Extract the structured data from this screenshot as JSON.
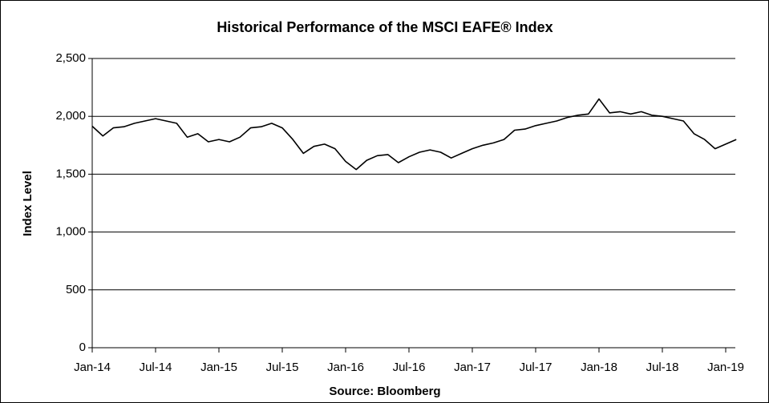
{
  "chart_data": {
    "type": "line",
    "title": "Historical Performance of the MSCI EAFE® Index",
    "ylabel": "Index Level",
    "source": "Source: Bloomberg",
    "x": [
      "Jan-14",
      "Feb-14",
      "Mar-14",
      "Apr-14",
      "May-14",
      "Jun-14",
      "Jul-14",
      "Aug-14",
      "Sep-14",
      "Oct-14",
      "Nov-14",
      "Dec-14",
      "Jan-15",
      "Feb-15",
      "Mar-15",
      "Apr-15",
      "May-15",
      "Jun-15",
      "Jul-15",
      "Aug-15",
      "Sep-15",
      "Oct-15",
      "Nov-15",
      "Dec-15",
      "Jan-16",
      "Feb-16",
      "Mar-16",
      "Apr-16",
      "May-16",
      "Jun-16",
      "Jul-16",
      "Aug-16",
      "Sep-16",
      "Oct-16",
      "Nov-16",
      "Dec-16",
      "Jan-17",
      "Feb-17",
      "Mar-17",
      "Apr-17",
      "May-17",
      "Jun-17",
      "Jul-17",
      "Aug-17",
      "Sep-17",
      "Oct-17",
      "Nov-17",
      "Dec-17",
      "Jan-18",
      "Feb-18",
      "Mar-18",
      "Apr-18",
      "May-18",
      "Jun-18",
      "Jul-18",
      "Aug-18",
      "Sep-18",
      "Oct-18",
      "Nov-18",
      "Dec-18",
      "Jan-19",
      "Feb-19"
    ],
    "series": [
      {
        "name": "MSCI EAFE",
        "color": "#000000",
        "values": [
          1915,
          1830,
          1900,
          1910,
          1940,
          1960,
          1980,
          1960,
          1940,
          1820,
          1850,
          1780,
          1800,
          1780,
          1820,
          1900,
          1910,
          1940,
          1900,
          1800,
          1680,
          1740,
          1760,
          1720,
          1610,
          1540,
          1620,
          1660,
          1670,
          1600,
          1650,
          1690,
          1710,
          1690,
          1640,
          1680,
          1720,
          1750,
          1770,
          1800,
          1880,
          1890,
          1920,
          1940,
          1960,
          1990,
          2010,
          2020,
          2150,
          2030,
          2040,
          2020,
          2040,
          2010,
          2000,
          1980,
          1960,
          1850,
          1800,
          1720,
          1760,
          1800
        ]
      }
    ],
    "xticks": [
      "Jan-14",
      "Jul-14",
      "Jan-15",
      "Jul-15",
      "Jan-16",
      "Jul-16",
      "Jan-17",
      "Jul-17",
      "Jan-18",
      "Jul-18",
      "Jan-19"
    ],
    "ylim": [
      0,
      2500
    ],
    "yticks": [
      0,
      500,
      {
        "value": 1000,
        "label": "1,000"
      },
      {
        "value": 1500,
        "label": "1,500"
      },
      {
        "value": 2000,
        "label": "2,000"
      },
      {
        "value": 2500,
        "label": "2,500"
      }
    ],
    "grid": true
  }
}
